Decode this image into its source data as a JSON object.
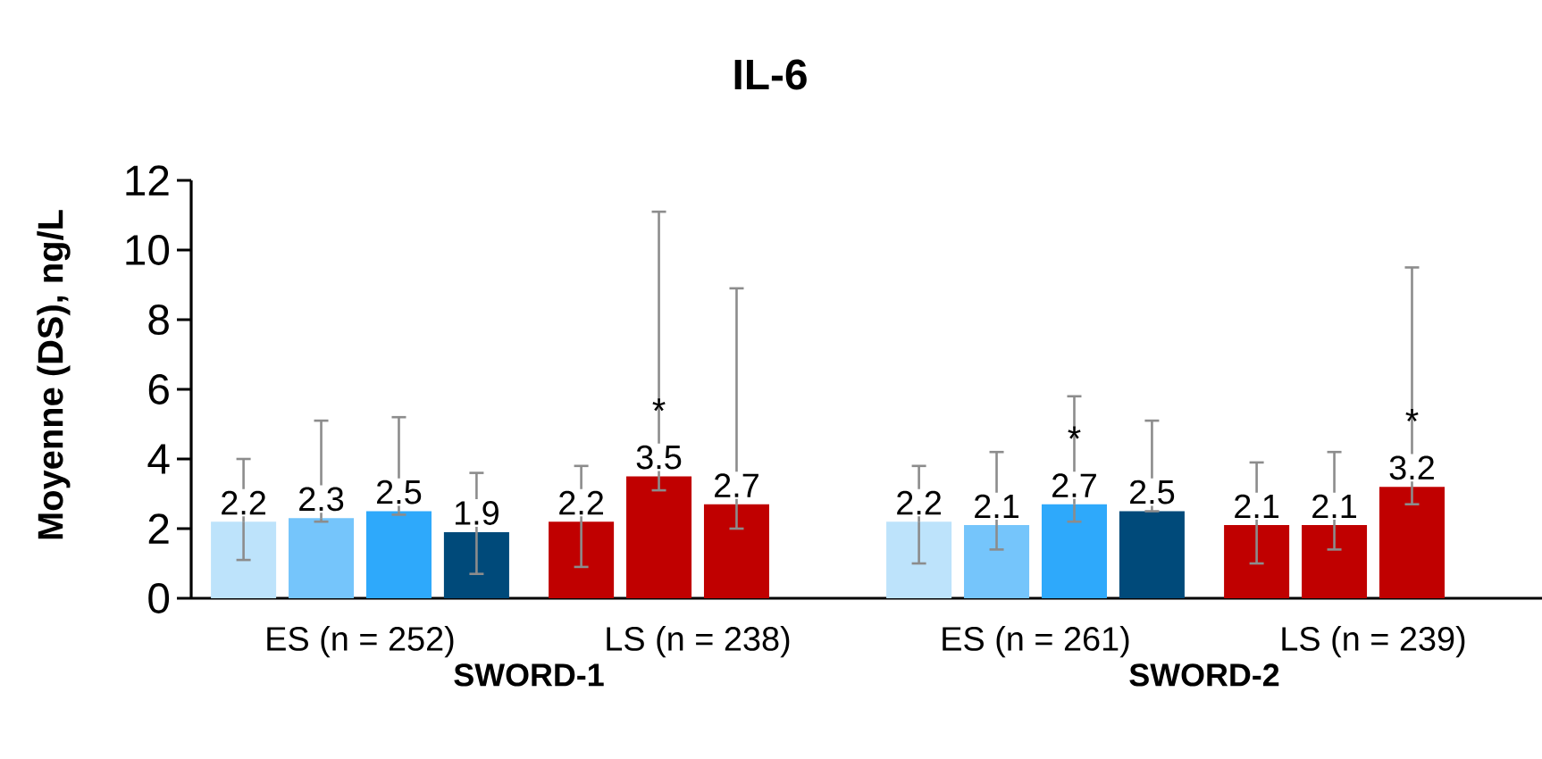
{
  "chart_data": {
    "type": "bar",
    "title": "IL-6",
    "ylabel": "Moyenne (DS), ng/L",
    "categories": [
      "ES (n = 252)",
      "LS (n = 238)",
      "ES (n = 261)",
      "LS (n = 239)"
    ],
    "series": [
      {
        "color": "#bde3fb",
        "values": [
          2.2,
          null,
          2.2,
          null
        ],
        "errors": [
          [
            1.1,
            4.0
          ],
          null,
          [
            1.0,
            3.8
          ],
          null
        ]
      },
      {
        "color": "#75c5fb",
        "values": [
          2.3,
          null,
          2.1,
          null
        ],
        "errors": [
          [
            2.2,
            5.1
          ],
          null,
          [
            1.4,
            4.2
          ],
          null
        ]
      },
      {
        "color": "#2ea9fb",
        "values": [
          2.5,
          null,
          2.7,
          null
        ],
        "errors": [
          [
            2.4,
            5.2
          ],
          null,
          [
            2.2,
            5.8
          ],
          null
        ]
      },
      {
        "color": "#004a7a",
        "values": [
          1.9,
          null,
          2.5,
          null
        ],
        "errors": [
          [
            0.7,
            3.6
          ],
          null,
          [
            2.5,
            5.1
          ],
          null
        ]
      },
      {
        "color": "#c00000",
        "values": [
          null,
          2.2,
          null,
          2.1
        ],
        "errors": [
          null,
          [
            0.9,
            3.8
          ],
          null,
          [
            1.0,
            3.9
          ]
        ]
      },
      {
        "color": "#c00000",
        "values": [
          null,
          3.5,
          null,
          2.1
        ],
        "errors": [
          null,
          [
            3.1,
            11.1
          ],
          null,
          [
            1.4,
            4.2
          ]
        ]
      },
      {
        "color": "#c00000",
        "values": [
          null,
          2.7,
          null,
          3.2
        ],
        "errors": [
          null,
          [
            2.0,
            8.9
          ],
          null,
          [
            2.7,
            9.5
          ]
        ]
      }
    ],
    "ylim": [
      0,
      12
    ],
    "yticks": [
      0,
      2,
      4,
      6,
      8,
      10,
      12
    ],
    "data_labels": true,
    "grid": false,
    "annotations": [
      "*",
      "*",
      "*",
      "SWORD-1",
      "SWORD-2"
    ]
  }
}
